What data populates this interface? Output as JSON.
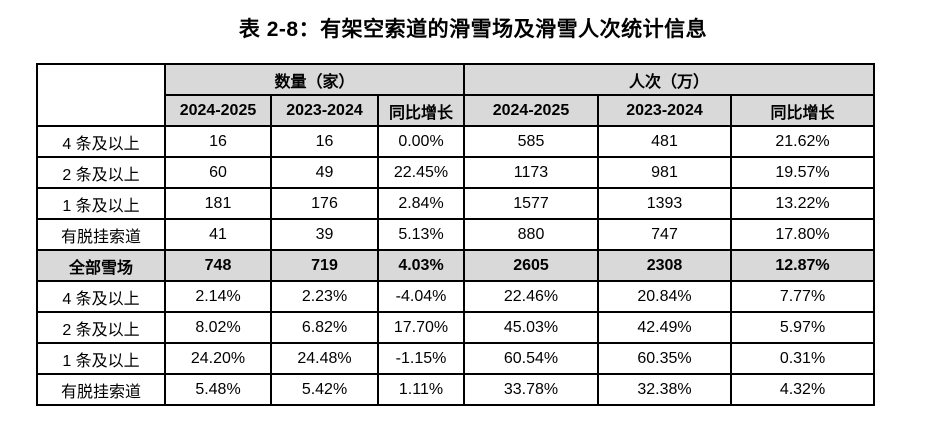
{
  "page": {
    "title": "表 2-8：有架空索道的滑雪场及滑雪人次统计信息"
  },
  "colors": {
    "header_bg": "#d9d9d9",
    "total_row_bg": "#d9d9d9",
    "border": "#000000",
    "text": "#000000",
    "background": "#ffffff"
  },
  "table": {
    "corner_label": "",
    "column_groups": [
      {
        "label": "数量（家）",
        "columns": [
          "2024-2025",
          "2023-2024",
          "同比增长"
        ]
      },
      {
        "label": "人次（万）",
        "columns": [
          "2024-2025",
          "2023-2024",
          "同比增长"
        ]
      }
    ],
    "rows": [
      {
        "label": "4 条及以上",
        "emphasis": false,
        "values": [
          "16",
          "16",
          "0.00%",
          "585",
          "481",
          "21.62%"
        ]
      },
      {
        "label": "2 条及以上",
        "emphasis": false,
        "values": [
          "60",
          "49",
          "22.45%",
          "1173",
          "981",
          "19.57%"
        ]
      },
      {
        "label": "1 条及以上",
        "emphasis": false,
        "values": [
          "181",
          "176",
          "2.84%",
          "1577",
          "1393",
          "13.22%"
        ]
      },
      {
        "label": "有脱挂索道",
        "emphasis": false,
        "values": [
          "41",
          "39",
          "5.13%",
          "880",
          "747",
          "17.80%"
        ]
      },
      {
        "label": "全部雪场",
        "emphasis": true,
        "values": [
          "748",
          "719",
          "4.03%",
          "2605",
          "2308",
          "12.87%"
        ]
      },
      {
        "label": "4 条及以上",
        "emphasis": false,
        "values": [
          "2.14%",
          "2.23%",
          "-4.04%",
          "22.46%",
          "20.84%",
          "7.77%"
        ]
      },
      {
        "label": "2 条及以上",
        "emphasis": false,
        "values": [
          "8.02%",
          "6.82%",
          "17.70%",
          "45.03%",
          "42.49%",
          "5.97%"
        ]
      },
      {
        "label": "1 条及以上",
        "emphasis": false,
        "values": [
          "24.20%",
          "24.48%",
          "-1.15%",
          "60.54%",
          "60.35%",
          "0.31%"
        ]
      },
      {
        "label": "有脱挂索道",
        "emphasis": false,
        "values": [
          "5.48%",
          "5.42%",
          "1.11%",
          "33.78%",
          "32.38%",
          "4.32%"
        ]
      }
    ]
  },
  "chart_data": {
    "type": "table",
    "title": "表 2-8：有架空索道的滑雪场及滑雪人次统计信息",
    "column_headers": [
      "",
      "数量（家） 2024-2025",
      "数量（家） 2023-2024",
      "数量（家） 同比增长",
      "人次（万） 2024-2025",
      "人次（万） 2023-2024",
      "人次（万） 同比增长"
    ],
    "rows": [
      [
        "4 条及以上",
        "16",
        "16",
        "0.00%",
        "585",
        "481",
        "21.62%"
      ],
      [
        "2 条及以上",
        "60",
        "49",
        "22.45%",
        "1173",
        "981",
        "19.57%"
      ],
      [
        "1 条及以上",
        "181",
        "176",
        "2.84%",
        "1577",
        "1393",
        "13.22%"
      ],
      [
        "有脱挂索道",
        "41",
        "39",
        "5.13%",
        "880",
        "747",
        "17.80%"
      ],
      [
        "全部雪场",
        "748",
        "719",
        "4.03%",
        "2605",
        "2308",
        "12.87%"
      ],
      [
        "4 条及以上",
        "2.14%",
        "2.23%",
        "-4.04%",
        "22.46%",
        "20.84%",
        "7.77%"
      ],
      [
        "2 条及以上",
        "8.02%",
        "6.82%",
        "17.70%",
        "45.03%",
        "42.49%",
        "5.97%"
      ],
      [
        "1 条及以上",
        "24.20%",
        "24.48%",
        "-1.15%",
        "60.54%",
        "60.35%",
        "0.31%"
      ],
      [
        "有脱挂索道",
        "5.48%",
        "5.42%",
        "1.11%",
        "33.78%",
        "32.38%",
        "4.32%"
      ]
    ]
  }
}
